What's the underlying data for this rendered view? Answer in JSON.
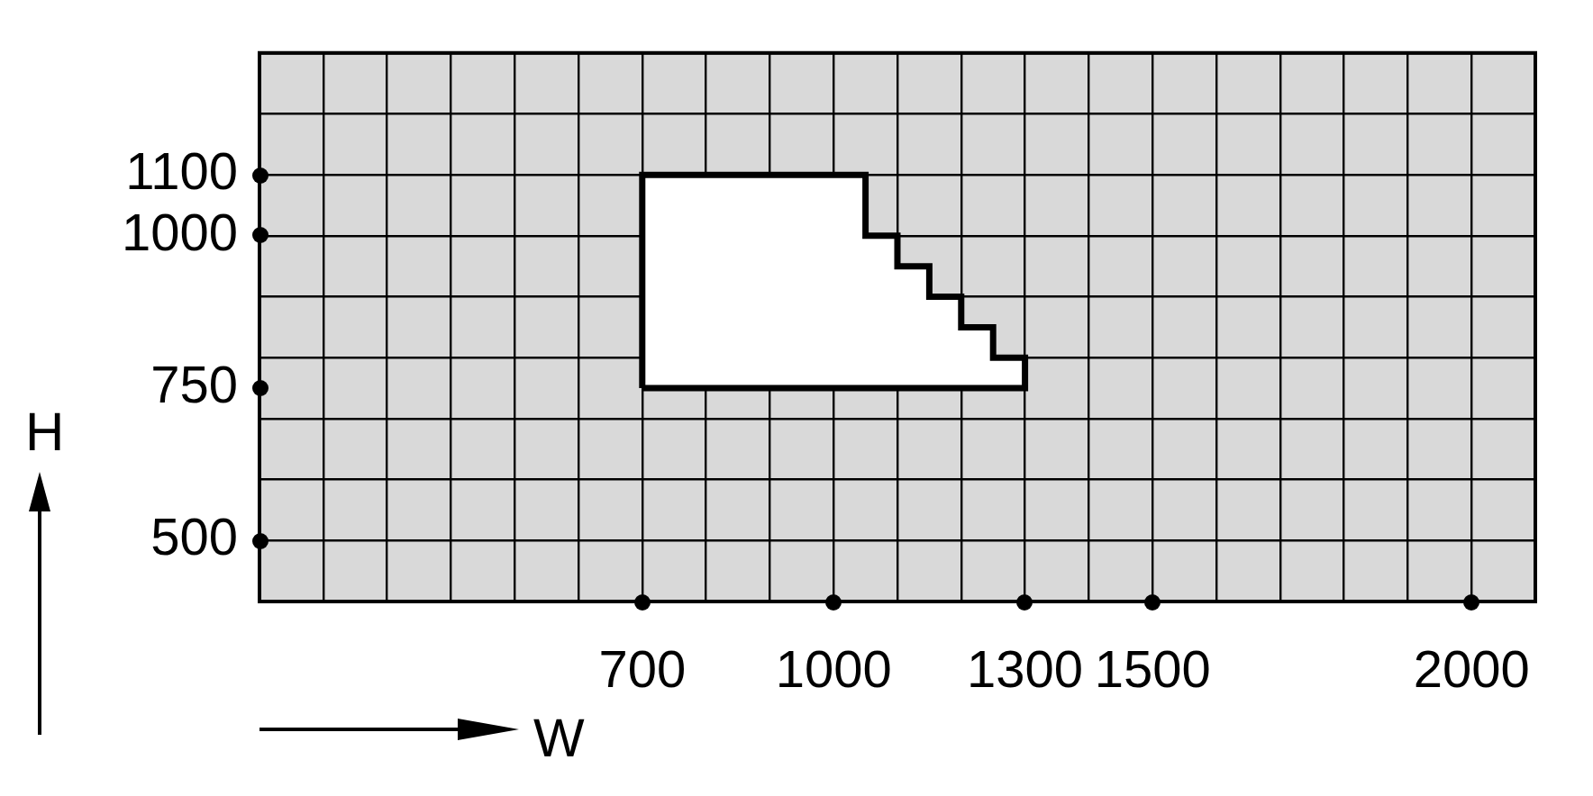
{
  "chart_data": {
    "type": "area",
    "xlabel": "W",
    "ylabel": "H",
    "xlim": [
      100,
      2100
    ],
    "xticks": [
      {
        "value": 100,
        "label": null
      },
      {
        "value": 200,
        "label": null
      },
      {
        "value": 300,
        "label": null
      },
      {
        "value": 400,
        "label": null
      },
      {
        "value": 500,
        "label": null
      },
      {
        "value": 600,
        "label": null
      },
      700,
      {
        "value": 800,
        "label": null
      },
      {
        "value": 900,
        "label": null
      },
      1000,
      {
        "value": 1100,
        "label": null
      },
      {
        "value": 1200,
        "label": null
      },
      1300,
      {
        "value": 1400,
        "label": null
      },
      1500,
      {
        "value": 1600,
        "label": null
      },
      {
        "value": 1700,
        "label": null
      },
      {
        "value": 1800,
        "label": null
      },
      {
        "value": 1900,
        "label": null
      },
      2000,
      {
        "value": 2100,
        "label": null
      }
    ],
    "ylim": [
      400,
      1300
    ],
    "yticks": [
      {
        "value": 400,
        "label": null
      },
      500,
      {
        "value": 600,
        "label": null
      },
      {
        "value": 700,
        "label": null
      },
      750,
      {
        "value": 800,
        "label": null
      },
      {
        "value": 900,
        "label": null
      },
      1000,
      1100,
      {
        "value": 1200,
        "label": null
      },
      {
        "value": 1300,
        "label": null
      }
    ],
    "grid": true,
    "series": [
      {
        "color": "#000000",
        "x": [
          700,
          700,
          1050,
          1050,
          1100,
          1100,
          1150,
          1150,
          1200,
          1200,
          1250,
          1250,
          1300,
          1300,
          700
        ],
        "values": [
          750,
          1100,
          1100,
          1000,
          1000,
          950,
          950,
          900,
          900,
          850,
          850,
          800,
          800,
          750,
          750
        ]
      }
    ]
  }
}
